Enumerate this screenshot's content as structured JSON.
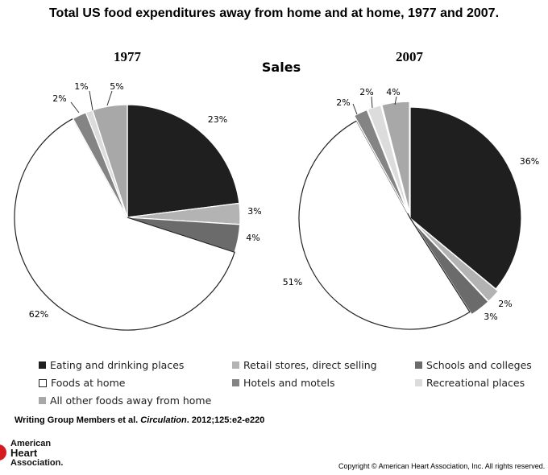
{
  "page": {
    "title": "Total US food expenditures away from home and at home, 1977 and 2007.",
    "subtitle": "Sales",
    "citation_authors": "Writing Group Members et al.",
    "citation_journal": "Circulation",
    "citation_ref": ". 2012;125:e2-e220",
    "logo_lines": [
      "American",
      "Heart",
      "Association."
    ],
    "copyright": "Copyright © American Heart Association, Inc. All rights reserved."
  },
  "colors": {
    "eating": "#1f1f1f",
    "retail": "#b3b3b3",
    "schools": "#6b6b6b",
    "home": "#ffffff",
    "hotels": "#848484",
    "recreational": "#dcdcdc",
    "other": "#a8a8a8"
  },
  "chart_data": {
    "type": "pie",
    "title": "Total US food expenditures away from home and at home, 1977 and 2007.",
    "subtitle": "Sales",
    "legend_position": "bottom",
    "legend": [
      {
        "key": "eating",
        "label": "Eating and drinking places"
      },
      {
        "key": "retail",
        "label": "Retail stores, direct selling"
      },
      {
        "key": "schools",
        "label": "Schools and colleges"
      },
      {
        "key": "home",
        "label": "Foods at home"
      },
      {
        "key": "hotels",
        "label": "Hotels and motels"
      },
      {
        "key": "recreational",
        "label": "Recreational places"
      },
      {
        "key": "other",
        "label": "All other foods away from home"
      }
    ],
    "pies": [
      {
        "title": "1977",
        "slices": [
          {
            "key": "eating",
            "value": 23,
            "label": "23%"
          },
          {
            "key": "retail",
            "value": 3,
            "label": "3%"
          },
          {
            "key": "schools",
            "value": 4,
            "label": "4%"
          },
          {
            "key": "home",
            "value": 62,
            "label": "62%"
          },
          {
            "key": "hotels",
            "value": 2,
            "label": "2%"
          },
          {
            "key": "recreational",
            "value": 1,
            "label": "1%"
          },
          {
            "key": "other",
            "value": 5,
            "label": "5%"
          }
        ]
      },
      {
        "title": "2007",
        "slices": [
          {
            "key": "eating",
            "value": 36,
            "label": "36%"
          },
          {
            "key": "retail",
            "value": 2,
            "label": "2%"
          },
          {
            "key": "schools",
            "value": 3,
            "label": "3%"
          },
          {
            "key": "home",
            "value": 51,
            "label": "51%"
          },
          {
            "key": "hotels",
            "value": 2,
            "label": "2%"
          },
          {
            "key": "recreational",
            "value": 2,
            "label": "2%"
          },
          {
            "key": "other",
            "value": 4,
            "label": "4%"
          }
        ]
      }
    ]
  }
}
